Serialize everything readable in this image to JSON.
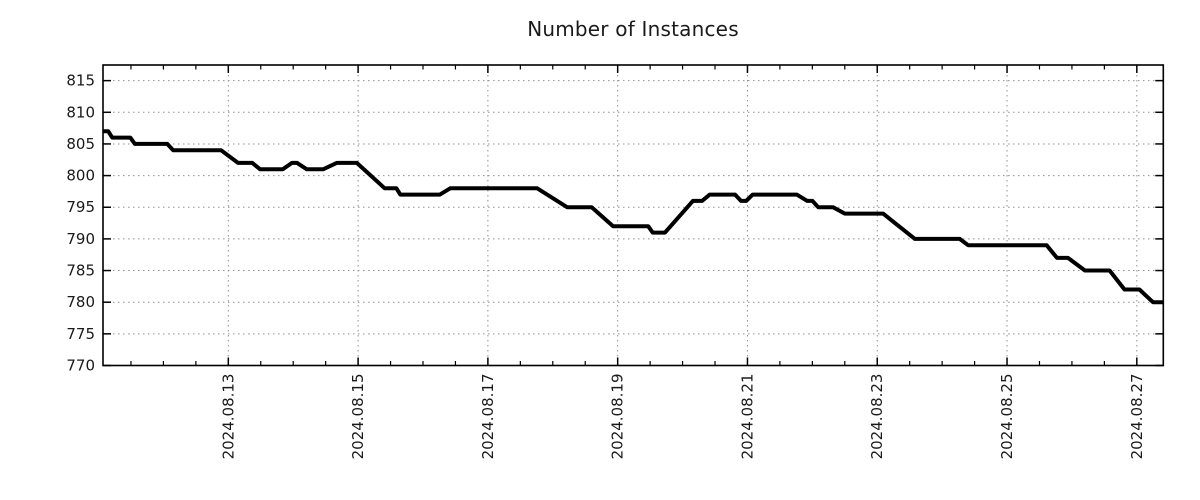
{
  "title": "Number of Instances",
  "chart_data": {
    "type": "line",
    "title": "Number of Instances",
    "grid": true,
    "legend": "none",
    "colors": {
      "line": "#000000",
      "grid": "#909090",
      "axis": "#000000",
      "text": "#1a1a1a",
      "background": "#ffffff"
    },
    "x_axis": {
      "unit": "days_since_2024.08.11_00:00",
      "range": [
        0.069,
        16.408
      ],
      "major_ticks": [
        {
          "t": 2,
          "label": "2024.08.13"
        },
        {
          "t": 4,
          "label": "2024.08.15"
        },
        {
          "t": 6,
          "label": "2024.08.17"
        },
        {
          "t": 8,
          "label": "2024.08.19"
        },
        {
          "t": 10,
          "label": "2024.08.21"
        },
        {
          "t": 12,
          "label": "2024.08.23"
        },
        {
          "t": 14,
          "label": "2024.08.25"
        },
        {
          "t": 16,
          "label": "2024.08.27"
        }
      ],
      "minor_tick_interval": 0.5,
      "label_rotation_deg": -90
    },
    "y_axis": {
      "range": [
        770,
        817.47
      ],
      "ticks": [
        770,
        775,
        780,
        785,
        790,
        795,
        800,
        805,
        810,
        815
      ]
    },
    "series": [
      {
        "name": "Number of Instances",
        "color": "#000000",
        "points": [
          [
            0.07,
            807
          ],
          [
            0.15,
            807
          ],
          [
            0.21,
            806
          ],
          [
            0.49,
            806
          ],
          [
            0.56,
            805
          ],
          [
            1.06,
            805
          ],
          [
            1.15,
            804
          ],
          [
            1.89,
            804
          ],
          [
            2.15,
            802
          ],
          [
            2.37,
            802
          ],
          [
            2.49,
            801
          ],
          [
            2.84,
            801
          ],
          [
            2.98,
            802
          ],
          [
            3.06,
            802
          ],
          [
            3.21,
            801
          ],
          [
            3.46,
            801
          ],
          [
            3.67,
            802
          ],
          [
            3.98,
            802
          ],
          [
            4.41,
            798
          ],
          [
            4.59,
            798
          ],
          [
            4.65,
            797
          ],
          [
            5.26,
            797
          ],
          [
            5.42,
            798
          ],
          [
            6.76,
            798
          ],
          [
            7.22,
            795
          ],
          [
            7.6,
            795
          ],
          [
            7.93,
            792
          ],
          [
            8.47,
            792
          ],
          [
            8.54,
            791
          ],
          [
            8.73,
            791
          ],
          [
            9.16,
            796
          ],
          [
            9.3,
            796
          ],
          [
            9.42,
            797
          ],
          [
            9.81,
            797
          ],
          [
            9.9,
            796
          ],
          [
            9.98,
            796
          ],
          [
            10.08,
            797
          ],
          [
            10.76,
            797
          ],
          [
            10.92,
            796
          ],
          [
            11.0,
            796
          ],
          [
            11.09,
            795
          ],
          [
            11.32,
            795
          ],
          [
            11.5,
            794
          ],
          [
            12.09,
            794
          ],
          [
            12.58,
            790
          ],
          [
            13.27,
            790
          ],
          [
            13.4,
            789
          ],
          [
            14.61,
            789
          ],
          [
            14.77,
            787
          ],
          [
            14.94,
            787
          ],
          [
            15.2,
            785
          ],
          [
            15.58,
            785
          ],
          [
            15.81,
            782
          ],
          [
            16.04,
            782
          ],
          [
            16.25,
            780
          ],
          [
            16.41,
            780
          ]
        ]
      }
    ]
  }
}
